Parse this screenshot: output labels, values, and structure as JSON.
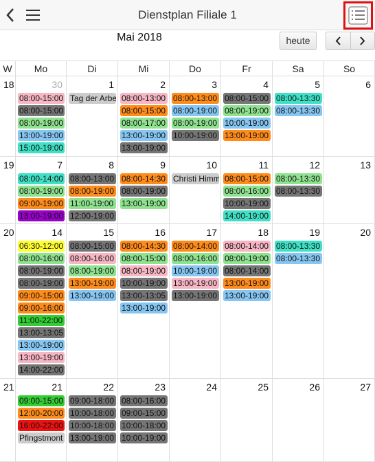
{
  "header": {
    "title": "Dienstplan Filiale 1"
  },
  "calendar": {
    "month": "Mai 2018",
    "today_button": "heute",
    "weekdays": [
      "W",
      "Mo",
      "Di",
      "Mi",
      "Do",
      "Fr",
      "Sa",
      "So"
    ],
    "weeks": [
      {
        "number": 18,
        "days": [
          {
            "day": 30,
            "muted": true,
            "events": [
              {
                "text": "08:00-15:00",
                "color": "pink"
              },
              {
                "text": "08:00-15:00",
                "color": "gray"
              },
              {
                "text": "08:00-19:00",
                "color": "green"
              },
              {
                "text": "13:00-19:00",
                "color": "blue"
              },
              {
                "text": "15:00-19:00",
                "color": "teal"
              }
            ]
          },
          {
            "day": 1,
            "events": [
              {
                "text": "Tag der Arbe",
                "color": "light"
              }
            ]
          },
          {
            "day": 2,
            "events": [
              {
                "text": "08:00-13:00",
                "color": "pink"
              },
              {
                "text": "08:00-15:00",
                "color": "orange"
              },
              {
                "text": "08:00-17:00",
                "color": "green"
              },
              {
                "text": "13:00-19:00",
                "color": "blue"
              },
              {
                "text": "13:00-19:00",
                "color": "gray"
              }
            ]
          },
          {
            "day": 3,
            "events": [
              {
                "text": "08:00-13:00",
                "color": "orange"
              },
              {
                "text": "08:00-19:00",
                "color": "blue"
              },
              {
                "text": "08:00-19:00",
                "color": "green"
              },
              {
                "text": "10:00-19:00",
                "color": "gray"
              }
            ]
          },
          {
            "day": 4,
            "events": [
              {
                "text": "08:00-15:00",
                "color": "gray"
              },
              {
                "text": "08:00-19:00",
                "color": "green"
              },
              {
                "text": "10:00-19:00",
                "color": "blue"
              },
              {
                "text": "13:00-19:00",
                "color": "orange"
              }
            ]
          },
          {
            "day": 5,
            "events": [
              {
                "text": "08:00-13:30",
                "color": "teal"
              },
              {
                "text": "08:00-13:30",
                "color": "blue"
              }
            ]
          },
          {
            "day": 6,
            "events": []
          }
        ]
      },
      {
        "number": 19,
        "days": [
          {
            "day": 7,
            "events": [
              {
                "text": "08:00-14:00",
                "color": "teal"
              },
              {
                "text": "08:00-19:00",
                "color": "green"
              },
              {
                "text": "09:00-19:00",
                "color": "orange"
              },
              {
                "text": "13:00-19:00",
                "color": "purple"
              }
            ]
          },
          {
            "day": 8,
            "events": [
              {
                "text": "08:00-13:00",
                "color": "gray"
              },
              {
                "text": "08:00-19:00",
                "color": "orange"
              },
              {
                "text": "11:00-19:00",
                "color": "green"
              },
              {
                "text": "12:00-19:00",
                "color": "gray"
              }
            ]
          },
          {
            "day": 9,
            "events": [
              {
                "text": "08:00-14:30",
                "color": "orange"
              },
              {
                "text": "08:00-19:00",
                "color": "gray"
              },
              {
                "text": "13:00-19:00",
                "color": "green"
              }
            ]
          },
          {
            "day": 10,
            "events": [
              {
                "text": "Christi Himm",
                "color": "light"
              }
            ]
          },
          {
            "day": 11,
            "events": [
              {
                "text": "08:00-15:00",
                "color": "orange"
              },
              {
                "text": "08:00-16:00",
                "color": "green"
              },
              {
                "text": "10:00-19:00",
                "color": "gray"
              },
              {
                "text": "14:00-19:00",
                "color": "teal"
              }
            ]
          },
          {
            "day": 12,
            "events": [
              {
                "text": "08:00-13:30",
                "color": "green"
              },
              {
                "text": "08:00-13:30",
                "color": "gray"
              }
            ]
          },
          {
            "day": 13,
            "events": []
          }
        ]
      },
      {
        "number": 20,
        "days": [
          {
            "day": 14,
            "events": [
              {
                "text": "06:30-12:00",
                "color": "yellow"
              },
              {
                "text": "08:00-16:00",
                "color": "green"
              },
              {
                "text": "08:00-19:00",
                "color": "gray"
              },
              {
                "text": "08:00-19:00",
                "color": "gray"
              },
              {
                "text": "09:00-15:00",
                "color": "orange"
              },
              {
                "text": "09:00-16:00",
                "color": "orange"
              },
              {
                "text": "11:00-22:00",
                "color": "lime"
              },
              {
                "text": "13:00-13:05",
                "color": "gray"
              },
              {
                "text": "13:00-19:00",
                "color": "blue"
              },
              {
                "text": "13:00-19:00",
                "color": "pink"
              },
              {
                "text": "14:00-22:00",
                "color": "gray"
              }
            ]
          },
          {
            "day": 15,
            "events": [
              {
                "text": "08:00-15:00",
                "color": "gray"
              },
              {
                "text": "08:00-16:00",
                "color": "pink"
              },
              {
                "text": "08:00-19:00",
                "color": "green"
              },
              {
                "text": "13:00-19:00",
                "color": "orange"
              },
              {
                "text": "13:00-19:00",
                "color": "blue"
              }
            ]
          },
          {
            "day": 16,
            "events": [
              {
                "text": "08:00-14:30",
                "color": "orange"
              },
              {
                "text": "08:00-15:00",
                "color": "green"
              },
              {
                "text": "08:00-19:00",
                "color": "pink"
              },
              {
                "text": "10:00-19:00",
                "color": "gray"
              },
              {
                "text": "13:00-13:05",
                "color": "gray"
              },
              {
                "text": "13:00-19:00",
                "color": "blue"
              }
            ]
          },
          {
            "day": 17,
            "events": [
              {
                "text": "08:00-14:00",
                "color": "orange"
              },
              {
                "text": "08:00-16:00",
                "color": "green"
              },
              {
                "text": "10:00-19:00",
                "color": "blue"
              },
              {
                "text": "13:00-19:00",
                "color": "pink"
              },
              {
                "text": "13:00-19:00",
                "color": "gray"
              }
            ]
          },
          {
            "day": 18,
            "events": [
              {
                "text": "08:00-14:00",
                "color": "pink"
              },
              {
                "text": "08:00-19:00",
                "color": "green"
              },
              {
                "text": "08:00-14:00",
                "color": "gray"
              },
              {
                "text": "13:00-19:00",
                "color": "orange"
              },
              {
                "text": "13:00-19:00",
                "color": "blue"
              }
            ]
          },
          {
            "day": 19,
            "events": [
              {
                "text": "08:00-13:30",
                "color": "teal"
              },
              {
                "text": "08:00-13:30",
                "color": "blue"
              }
            ]
          },
          {
            "day": 20,
            "events": []
          }
        ]
      },
      {
        "number": 21,
        "days": [
          {
            "day": 21,
            "events": [
              {
                "text": "09:00-15:00",
                "color": "lime"
              },
              {
                "text": "12:00-20:00",
                "color": "orange"
              },
              {
                "text": "16:00-22:00",
                "color": "red"
              },
              {
                "text": "Pfingstmont",
                "color": "light"
              }
            ]
          },
          {
            "day": 22,
            "events": [
              {
                "text": "09:00-18:00",
                "color": "gray"
              },
              {
                "text": "10:00-18:00",
                "color": "gray"
              },
              {
                "text": "10:00-18:00",
                "color": "gray"
              },
              {
                "text": "13:00-19:00",
                "color": "gray"
              }
            ]
          },
          {
            "day": 23,
            "events": [
              {
                "text": "08:00-16:00",
                "color": "gray"
              },
              {
                "text": "09:00-15:00",
                "color": "gray"
              },
              {
                "text": "10:00-18:00",
                "color": "gray"
              },
              {
                "text": "10:00-19:00",
                "color": "gray"
              }
            ]
          },
          {
            "day": 24,
            "events": []
          },
          {
            "day": 25,
            "events": []
          },
          {
            "day": 26,
            "events": []
          },
          {
            "day": 27,
            "events": []
          }
        ]
      }
    ]
  }
}
